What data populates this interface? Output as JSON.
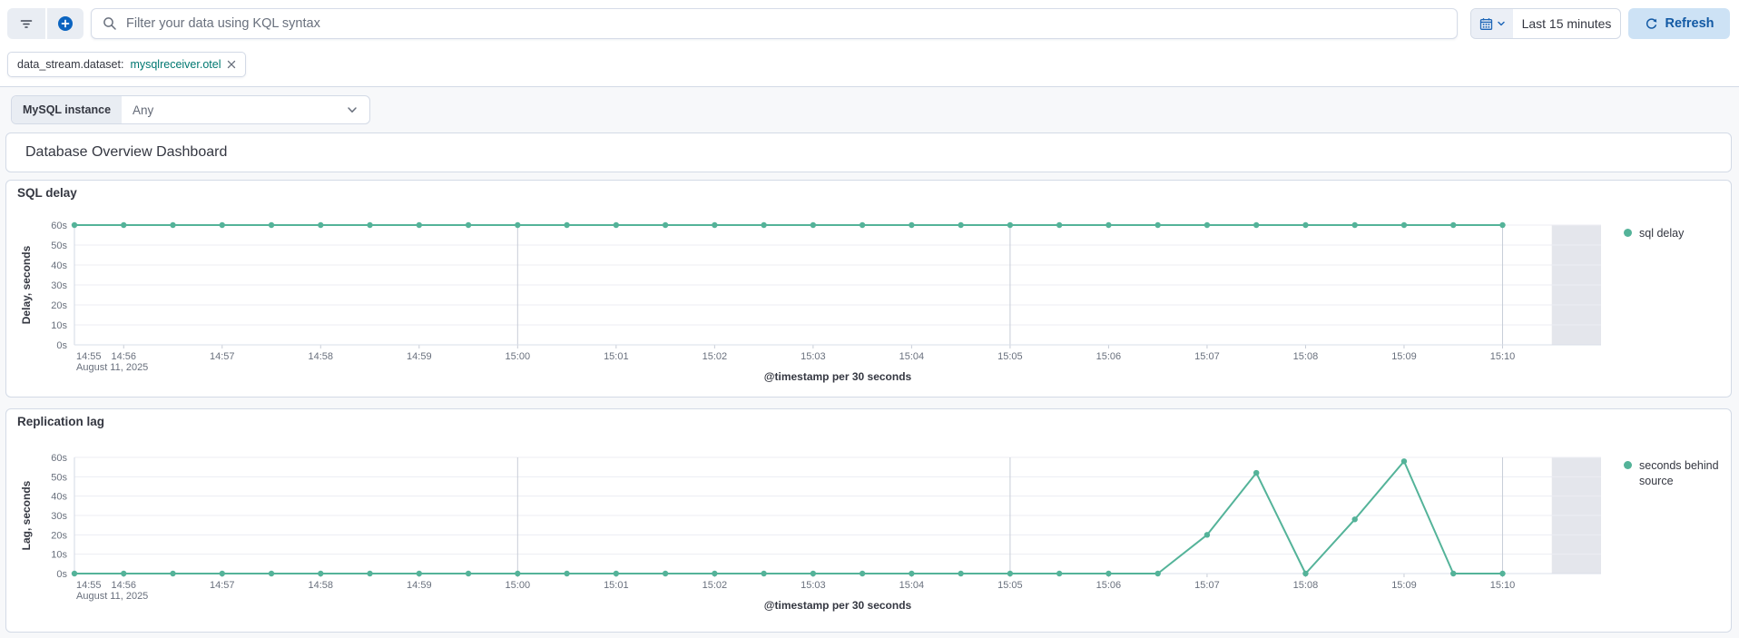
{
  "topbar": {
    "kql_placeholder": "Filter your data using KQL syntax",
    "time_range": "Last 15 minutes",
    "refresh_label": "Refresh"
  },
  "filters": {
    "pill_key": "data_stream.dataset:",
    "pill_value": "mysqlreceiver.otel"
  },
  "controls": {
    "label": "MySQL instance",
    "value": "Any"
  },
  "dashboard": {
    "title": "Database Overview Dashboard"
  },
  "colors": {
    "series_green": "#54b399",
    "primary_blue": "#0b64c0",
    "refresh_bg": "#cde2f5",
    "refresh_text": "#1259a4",
    "pill_value_teal": "#007871",
    "border": "#d3dae6",
    "text": "#343741",
    "text_subdued": "#69707d",
    "partial_bucket_band": "#e4e6ec"
  },
  "chart_data": [
    {
      "type": "line",
      "title": "SQL delay",
      "ylabel": "Delay, seconds",
      "xlabel": "@timestamp per 30 seconds",
      "legend_label": "sql delay",
      "legend_position": "right",
      "series_color": "#54b399",
      "unit": "s",
      "ylim": [
        0,
        60
      ],
      "y_ticks": [
        {
          "v": 0,
          "label": "0s"
        },
        {
          "v": 10,
          "label": "10s"
        },
        {
          "v": 20,
          "label": "20s"
        },
        {
          "v": 30,
          "label": "30s"
        },
        {
          "v": 40,
          "label": "40s"
        },
        {
          "v": 50,
          "label": "50s"
        },
        {
          "v": 60,
          "label": "60s"
        }
      ],
      "date_label": "August 11, 2025",
      "x_domain_min": [
        -4.5,
        11
      ],
      "partial_bucket_min": [
        10.5,
        11
      ],
      "x_ticks": [
        {
          "label": "14:55",
          "min": -5,
          "major": false,
          "edge": true
        },
        {
          "label": "14:56",
          "min": -4,
          "major": false
        },
        {
          "label": "14:57",
          "min": -3,
          "major": false
        },
        {
          "label": "14:58",
          "min": -2,
          "major": false
        },
        {
          "label": "14:59",
          "min": -1,
          "major": false
        },
        {
          "label": "15:00",
          "min": 0,
          "major": true
        },
        {
          "label": "15:01",
          "min": 1,
          "major": false
        },
        {
          "label": "15:02",
          "min": 2,
          "major": false
        },
        {
          "label": "15:03",
          "min": 3,
          "major": false
        },
        {
          "label": "15:04",
          "min": 4,
          "major": false
        },
        {
          "label": "15:05",
          "min": 5,
          "major": true
        },
        {
          "label": "15:06",
          "min": 6,
          "major": false
        },
        {
          "label": "15:07",
          "min": 7,
          "major": false
        },
        {
          "label": "15:08",
          "min": 8,
          "major": false
        },
        {
          "label": "15:09",
          "min": 9,
          "major": false
        },
        {
          "label": "15:10",
          "min": 10,
          "major": true
        }
      ],
      "x_points_start": "14:55:30",
      "x_points_interval": "30s",
      "points_start_min": -4.5,
      "points_interval_min": 0.5,
      "values": [
        60,
        60,
        60,
        60,
        60,
        60,
        60,
        60,
        60,
        60,
        60,
        60,
        60,
        60,
        60,
        60,
        60,
        60,
        60,
        60,
        60,
        60,
        60,
        60,
        60,
        60,
        60,
        60,
        60,
        60
      ]
    },
    {
      "type": "line",
      "title": "Replication lag",
      "ylabel": "Lag, seconds",
      "xlabel": "@timestamp per 30 seconds",
      "legend_label": "seconds behind source",
      "legend_position": "right",
      "series_color": "#54b399",
      "unit": "s",
      "ylim": [
        0,
        60
      ],
      "y_ticks": [
        {
          "v": 0,
          "label": "0s"
        },
        {
          "v": 10,
          "label": "10s"
        },
        {
          "v": 20,
          "label": "20s"
        },
        {
          "v": 30,
          "label": "30s"
        },
        {
          "v": 40,
          "label": "40s"
        },
        {
          "v": 50,
          "label": "50s"
        },
        {
          "v": 60,
          "label": "60s"
        }
      ],
      "date_label": "August 11, 2025",
      "x_domain_min": [
        -4.5,
        11
      ],
      "partial_bucket_min": [
        10.5,
        11
      ],
      "x_ticks": [
        {
          "label": "14:55",
          "min": -5,
          "major": false,
          "edge": true
        },
        {
          "label": "14:56",
          "min": -4,
          "major": false
        },
        {
          "label": "14:57",
          "min": -3,
          "major": false
        },
        {
          "label": "14:58",
          "min": -2,
          "major": false
        },
        {
          "label": "14:59",
          "min": -1,
          "major": false
        },
        {
          "label": "15:00",
          "min": 0,
          "major": true
        },
        {
          "label": "15:01",
          "min": 1,
          "major": false
        },
        {
          "label": "15:02",
          "min": 2,
          "major": false
        },
        {
          "label": "15:03",
          "min": 3,
          "major": false
        },
        {
          "label": "15:04",
          "min": 4,
          "major": false
        },
        {
          "label": "15:05",
          "min": 5,
          "major": true
        },
        {
          "label": "15:06",
          "min": 6,
          "major": false
        },
        {
          "label": "15:07",
          "min": 7,
          "major": false
        },
        {
          "label": "15:08",
          "min": 8,
          "major": false
        },
        {
          "label": "15:09",
          "min": 9,
          "major": false
        },
        {
          "label": "15:10",
          "min": 10,
          "major": true
        }
      ],
      "x_points_start": "14:55:30",
      "x_points_interval": "30s",
      "points_start_min": -4.5,
      "points_interval_min": 0.5,
      "values": [
        0,
        0,
        0,
        0,
        0,
        0,
        0,
        0,
        0,
        0,
        0,
        0,
        0,
        0,
        0,
        0,
        0,
        0,
        0,
        0,
        0,
        0,
        0,
        20,
        52,
        0,
        28,
        58,
        0,
        0
      ]
    }
  ]
}
